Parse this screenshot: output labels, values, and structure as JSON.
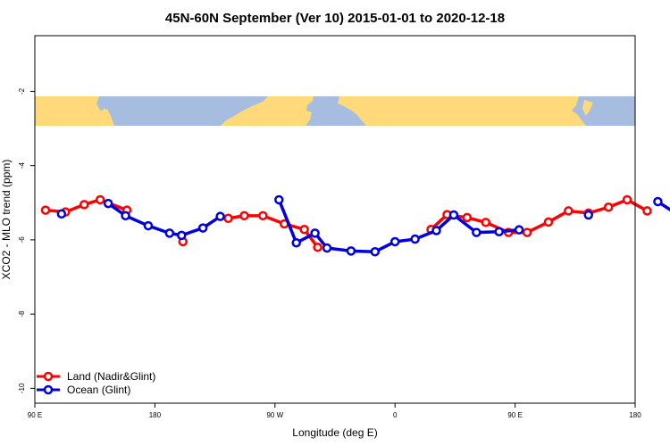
{
  "colors": {
    "land": "#ff0000",
    "ocean": "#0000dd",
    "map_land": "#ffd97a",
    "map_ocean": "#a6bddf"
  },
  "chart_data": {
    "type": "line",
    "title": "45N-60N September (Ver 10)   2015-01-01 to 2020-12-18",
    "xlabel": "Longitude (deg E)",
    "ylabel": "XCO2 - MLO trend (ppm)",
    "x_ticks": [
      {
        "value": 90,
        "label": "90 E"
      },
      {
        "value": 180,
        "label": "180"
      },
      {
        "value": 270,
        "label": "90 W"
      },
      {
        "value": 360,
        "label": "0"
      },
      {
        "value": 450,
        "label": "90 E"
      },
      {
        "value": 540,
        "label": "180"
      }
    ],
    "y_ticks": [
      {
        "value": -2,
        "label": "-2"
      },
      {
        "value": -4,
        "label": "-4"
      },
      {
        "value": -6,
        "label": "-6"
      },
      {
        "value": -8,
        "label": "-8"
      },
      {
        "value": -10,
        "label": "-10"
      }
    ],
    "xlim": [
      90,
      540
    ],
    "ylim": [
      -10.4,
      -0.5
    ],
    "grid": false,
    "legend_position": "bottom-left",
    "map_band": {
      "y_top": -1.8,
      "y_bottom": -2.8
    },
    "series": [
      {
        "name": "Land (Nadir&Glint)",
        "color_key": "land",
        "segments": [
          [
            [
              98,
              -5.2
            ],
            [
              113,
              -5.25
            ],
            [
              127,
              -5.05
            ],
            [
              139,
              -4.92
            ],
            [
              159,
              -5.2
            ]
          ],
          [
            [
              201,
              -6.05
            ]
          ],
          [
            [
              235,
              -5.42
            ],
            [
              247,
              -5.35
            ],
            [
              261,
              -5.35
            ],
            [
              277,
              -5.57
            ],
            [
              292,
              -5.72
            ],
            [
              302,
              -6.2
            ]
          ],
          [
            [
              387,
              -5.72
            ],
            [
              399,
              -5.32
            ],
            [
              414,
              -5.4
            ],
            [
              428,
              -5.53
            ],
            [
              445,
              -5.8
            ],
            [
              459,
              -5.8
            ],
            [
              475,
              -5.52
            ],
            [
              490,
              -5.22
            ],
            [
              505,
              -5.28
            ],
            [
              520,
              -5.12
            ],
            [
              534,
              -4.92
            ],
            [
              549,
              -5.22
            ]
          ]
        ]
      },
      {
        "name": "Ocean (Glint)",
        "color_key": "ocean",
        "segments": [
          [
            [
              110,
              -5.3
            ]
          ],
          [
            [
              145,
              -5.02
            ],
            [
              158,
              -5.35
            ],
            [
              175,
              -5.62
            ],
            [
              191,
              -5.82
            ],
            [
              200,
              -5.88
            ],
            [
              216,
              -5.68
            ],
            [
              229,
              -5.37
            ]
          ],
          [
            [
              273,
              -4.92
            ],
            [
              286,
              -6.08
            ],
            [
              300,
              -5.82
            ],
            [
              309,
              -6.22
            ],
            [
              327,
              -6.3
            ],
            [
              345,
              -6.32
            ],
            [
              360,
              -6.05
            ],
            [
              375,
              -5.98
            ],
            [
              391,
              -5.75
            ],
            [
              404,
              -5.33
            ],
            [
              421,
              -5.8
            ],
            [
              438,
              -5.78
            ],
            [
              453,
              -5.73
            ]
          ],
          [
            [
              505,
              -5.33
            ]
          ],
          [
            [
              557,
              -4.97
            ],
            [
              573,
              -5.35
            ],
            [
              588,
              -5.62
            ]
          ]
        ]
      }
    ]
  }
}
